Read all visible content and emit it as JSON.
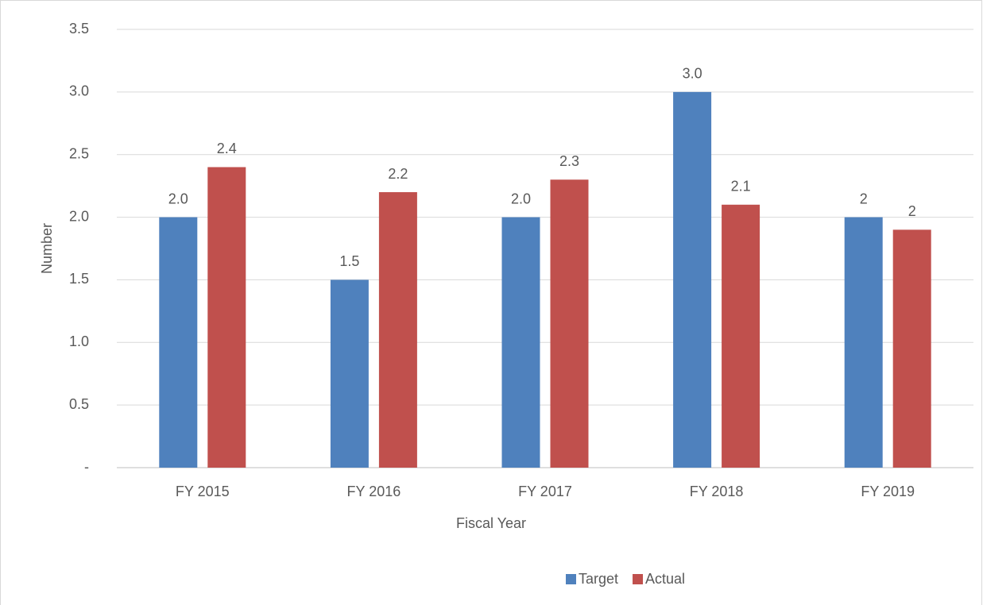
{
  "chart_data": {
    "type": "bar",
    "x_label": "Fiscal Year",
    "y_label": "Number",
    "categories": [
      "FY 2015",
      "FY 2016",
      "FY 2017",
      "FY 2018",
      "FY 2019"
    ],
    "series": [
      {
        "name": "Target",
        "color": "#4f81bd",
        "values": [
          2.0,
          1.5,
          2.0,
          3.0,
          2
        ],
        "value_labels": [
          "2.0",
          "1.5",
          "2.0",
          "3.0",
          "2"
        ]
      },
      {
        "name": "Actual",
        "color": "#c0504d",
        "values": [
          2.4,
          2.2,
          2.3,
          2.1,
          1.9
        ],
        "value_labels": [
          "2.4",
          "2.2",
          "2.3",
          "2.1",
          "2"
        ]
      }
    ],
    "ylim": [
      0,
      3.5
    ],
    "yticks": [
      {
        "value": 0,
        "label": "-"
      },
      0.5,
      {
        "value": 1,
        "label": "1.0"
      },
      1.5,
      {
        "value": 2,
        "label": "2.0"
      },
      2.5,
      {
        "value": 3,
        "label": "3.0"
      },
      3.5
    ],
    "grid": true,
    "legend": "bottom"
  }
}
